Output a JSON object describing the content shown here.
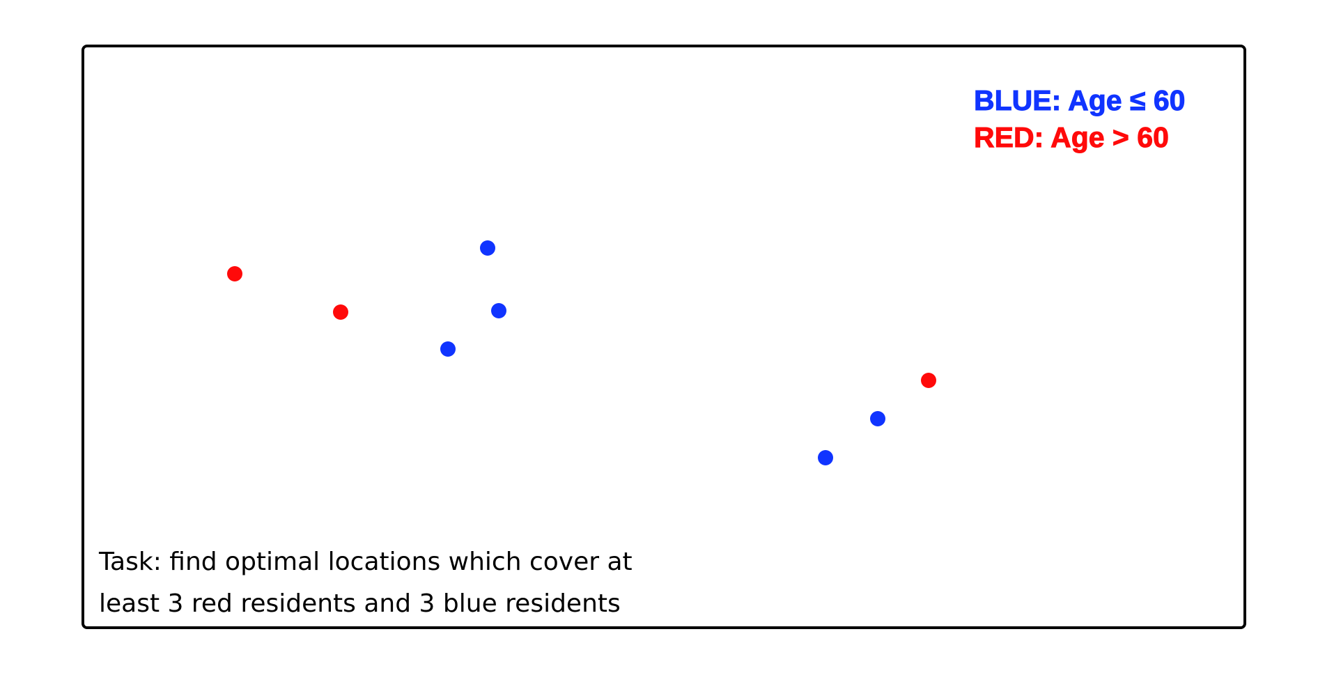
{
  "legend": {
    "blue_label": "BLUE: Age ≤ 60",
    "red_label": "RED: Age > 60",
    "blue_color": "#1034ff",
    "red_color": "#ff0a0a"
  },
  "task": {
    "line1": "Task: find optimal locations which cover at",
    "line2": "least 3 red residents and 3 blue residents"
  },
  "residents": [
    {
      "group": "red"
    },
    {
      "group": "red"
    },
    {
      "group": "blue"
    },
    {
      "group": "blue"
    },
    {
      "group": "blue"
    },
    {
      "group": "red"
    },
    {
      "group": "blue"
    },
    {
      "group": "blue"
    }
  ]
}
